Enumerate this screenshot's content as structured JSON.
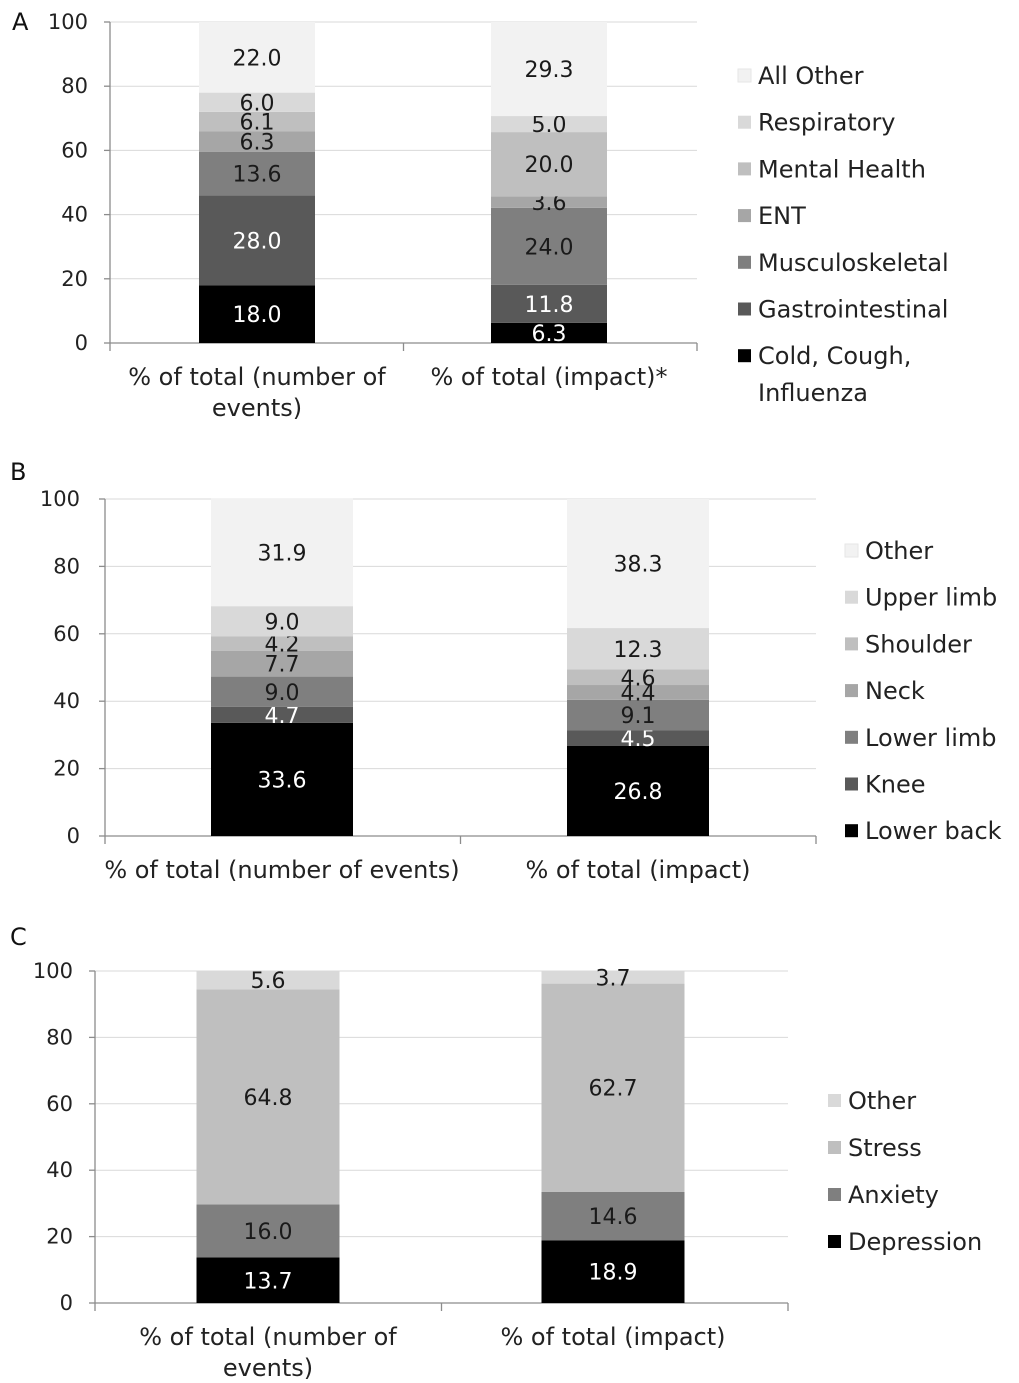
{
  "chart_data": [
    {
      "panel": "A",
      "type": "bar",
      "stacked": true,
      "ylim": [
        0,
        100
      ],
      "yticks": [
        0,
        20,
        40,
        60,
        80,
        100
      ],
      "grid": true,
      "legend_position": "right",
      "categories": [
        [
          "% of total (number of",
          "events)"
        ],
        [
          "% of total (impact)*"
        ]
      ],
      "series": [
        {
          "name": "Cold, Cough, Influenza",
          "label_lines": [
            "Cold, Cough,",
            "Influenza"
          ],
          "color": "#000000",
          "values": [
            18.0,
            6.3
          ],
          "labels": [
            "18.0",
            "6.3"
          ]
        },
        {
          "name": "Gastrointestinal",
          "color": "#595959",
          "values": [
            28.0,
            11.8
          ],
          "labels": [
            "28.0",
            "11.8"
          ]
        },
        {
          "name": "Musculoskeletal",
          "color": "#7f7f7f",
          "values": [
            13.6,
            24.0
          ],
          "labels": [
            "13.6",
            "24.0"
          ]
        },
        {
          "name": "ENT",
          "color": "#a6a6a6",
          "values": [
            6.3,
            3.6
          ],
          "labels": [
            "6.3",
            "3.6"
          ]
        },
        {
          "name": "Mental Health",
          "color": "#bfbfbf",
          "values": [
            6.1,
            20.0
          ],
          "labels": [
            "6.1",
            "20.0"
          ]
        },
        {
          "name": "Respiratory",
          "color": "#d9d9d9",
          "values": [
            6.0,
            5.0
          ],
          "labels": [
            "6.0",
            "5.0"
          ]
        },
        {
          "name": "All Other",
          "color": "#f2f2f2",
          "values": [
            22.0,
            29.3
          ],
          "labels": [
            "22.0",
            "29.3"
          ]
        }
      ]
    },
    {
      "panel": "B",
      "type": "bar",
      "stacked": true,
      "ylim": [
        0,
        100
      ],
      "yticks": [
        0,
        20,
        40,
        60,
        80,
        100
      ],
      "grid": true,
      "legend_position": "right",
      "categories": [
        [
          "% of total (number of events)"
        ],
        [
          "% of total (impact)"
        ]
      ],
      "series": [
        {
          "name": "Lower back",
          "color": "#000000",
          "values": [
            33.6,
            26.8
          ],
          "labels": [
            "33.6",
            "26.8"
          ]
        },
        {
          "name": "Knee",
          "color": "#595959",
          "values": [
            4.7,
            4.5
          ],
          "labels": [
            "4.7",
            "4.5"
          ]
        },
        {
          "name": "Lower limb",
          "color": "#7f7f7f",
          "values": [
            9.0,
            9.1
          ],
          "labels": [
            "9.0",
            "9.1"
          ]
        },
        {
          "name": "Neck",
          "color": "#a6a6a6",
          "values": [
            7.7,
            4.4
          ],
          "labels": [
            "7.7",
            "4.4"
          ]
        },
        {
          "name": "Shoulder",
          "color": "#bfbfbf",
          "values": [
            4.2,
            4.6
          ],
          "labels": [
            "4.2",
            "4.6"
          ]
        },
        {
          "name": "Upper limb",
          "color": "#d9d9d9",
          "values": [
            9.0,
            12.3
          ],
          "labels": [
            "9.0",
            "12.3"
          ]
        },
        {
          "name": "Other",
          "color": "#f2f2f2",
          "values": [
            31.9,
            38.3
          ],
          "labels": [
            "31.9",
            "38.3"
          ]
        }
      ]
    },
    {
      "panel": "C",
      "type": "bar",
      "stacked": true,
      "ylim": [
        0,
        100
      ],
      "yticks": [
        0,
        20,
        40,
        60,
        80,
        100
      ],
      "grid": true,
      "legend_position": "right",
      "categories": [
        [
          "% of total (number of",
          "events)"
        ],
        [
          "% of total (impact)"
        ]
      ],
      "series": [
        {
          "name": "Depression",
          "color": "#000000",
          "values": [
            13.7,
            18.9
          ],
          "labels": [
            "13.7",
            "18.9"
          ]
        },
        {
          "name": "Anxiety",
          "color": "#7f7f7f",
          "values": [
            16.0,
            14.6
          ],
          "labels": [
            "16.0",
            "14.6"
          ]
        },
        {
          "name": "Stress",
          "color": "#bfbfbf",
          "values": [
            64.8,
            62.7
          ],
          "labels": [
            "64.8",
            "62.7"
          ]
        },
        {
          "name": "Other",
          "color": "#d9d9d9",
          "values": [
            5.6,
            3.7
          ],
          "labels": [
            "5.6",
            "3.7"
          ]
        }
      ]
    }
  ]
}
